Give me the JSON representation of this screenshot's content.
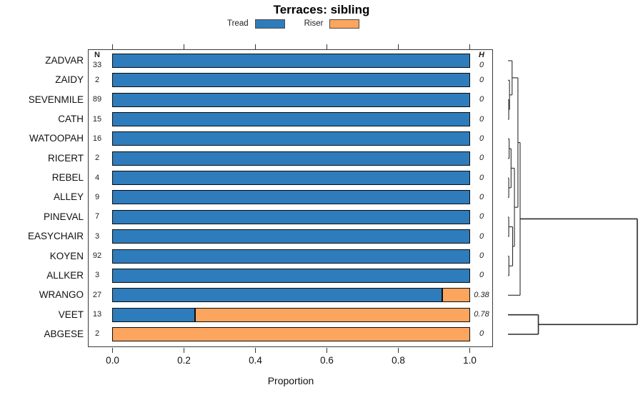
{
  "title": "Terraces: sibling",
  "legend": {
    "items": [
      {
        "label": "Tread",
        "color": "#2E7CBB"
      },
      {
        "label": "Riser",
        "color": "#FBA55F"
      }
    ]
  },
  "columns": {
    "n_header": "N",
    "h_header": "H"
  },
  "x_axis": {
    "label": "Proportion",
    "tick_labels": [
      "0.0",
      "0.2",
      "0.4",
      "0.6",
      "0.8",
      "1.0"
    ],
    "ticks": [
      0.0,
      0.2,
      0.4,
      0.6,
      0.8,
      1.0
    ]
  },
  "colors": {
    "tread": "#2E7CBB",
    "riser": "#FBA55F",
    "bar_border": "#0d0d0d",
    "dendrogram": "#2b2b2b"
  },
  "chart_data": {
    "type": "bar",
    "orientation": "horizontal",
    "stacked": true,
    "title": "Terraces: sibling",
    "xlabel": "Proportion",
    "xlim": [
      0,
      1
    ],
    "xticks": [
      0.0,
      0.2,
      0.4,
      0.6,
      0.8,
      1.0
    ],
    "grid": false,
    "legend_position": "top",
    "categories": [
      "ZADVAR",
      "ZAIDY",
      "SEVENMILE",
      "CATH",
      "WATOOPAH",
      "RICERT",
      "REBEL",
      "ALLEY",
      "PINEVAL",
      "EASYCHAIR",
      "KOYEN",
      "ALLKER",
      "WRANGO",
      "VEET",
      "ABGESE"
    ],
    "n_values": [
      33,
      2,
      89,
      15,
      16,
      2,
      4,
      9,
      7,
      3,
      92,
      3,
      27,
      13,
      2
    ],
    "h_values": [
      "0",
      "0",
      "0",
      "0",
      "0",
      "0",
      "0",
      "0",
      "0",
      "0",
      "0",
      "0",
      "0.38",
      "0.78",
      "0"
    ],
    "series": [
      {
        "name": "Tread",
        "values": [
          1,
          1,
          1,
          1,
          1,
          1,
          1,
          1,
          1,
          1,
          1,
          1,
          0.923,
          0.231,
          0
        ]
      },
      {
        "name": "Riser",
        "values": [
          0,
          0,
          0,
          0,
          0,
          0,
          0,
          0,
          0,
          0,
          0,
          0,
          0.077,
          0.769,
          1
        ]
      }
    ],
    "dendrogram": {
      "note": "right-side dendrogram, leaves at category rows, heights as fraction of dendrogram width",
      "linkage": [
        {
          "a": 2,
          "b": 3,
          "h": 0.006
        },
        {
          "a": 1,
          "b": 15,
          "h": 0.012
        },
        {
          "a": 0,
          "b": 16,
          "h": 0.032
        },
        {
          "a": 4,
          "b": 5,
          "h": 0.009
        },
        {
          "a": 6,
          "b": 7,
          "h": 0.006
        },
        {
          "a": 18,
          "b": 19,
          "h": 0.024
        },
        {
          "a": 8,
          "b": 9,
          "h": 0.006
        },
        {
          "a": 10,
          "b": 11,
          "h": 0.007
        },
        {
          "a": 21,
          "b": 22,
          "h": 0.036
        },
        {
          "a": 20,
          "b": 23,
          "h": 0.05
        },
        {
          "a": 17,
          "b": 24,
          "h": 0.077
        },
        {
          "a": 25,
          "b": 12,
          "h": 0.094
        },
        {
          "a": 13,
          "b": 14,
          "h": 0.235
        },
        {
          "a": 26,
          "b": 27,
          "h": 1.0
        }
      ]
    }
  }
}
